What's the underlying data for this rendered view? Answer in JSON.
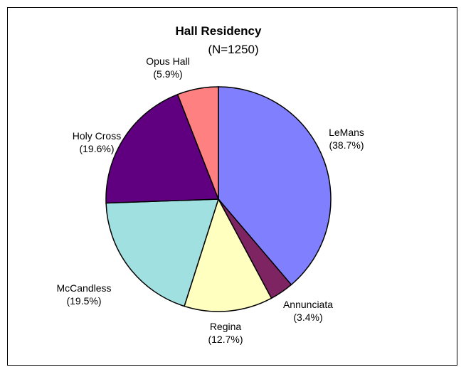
{
  "chart_data": {
    "type": "pie",
    "title": "Hall Residency",
    "subtitle": "(N=1250)",
    "slices": [
      {
        "name": "LeMans",
        "value": 38.7,
        "label_pct": "(38.7%)",
        "color": "#8080ff"
      },
      {
        "name": "Annunciata",
        "value": 3.4,
        "label_pct": "(3.4%)",
        "color": "#7f2463"
      },
      {
        "name": "Regina",
        "value": 12.7,
        "label_pct": "(12.7%)",
        "color": "#ffffc0"
      },
      {
        "name": "McCandless",
        "value": 19.5,
        "label_pct": "(19.5%)",
        "color": "#a0e0e0"
      },
      {
        "name": "Holy Cross",
        "value": 19.6,
        "label_pct": "(19.6%)",
        "color": "#600080"
      },
      {
        "name": "Opus Hall",
        "value": 5.9,
        "label_pct": "(5.9%)",
        "color": "#ff8080"
      }
    ],
    "legend": "none",
    "start_angle": "12 o'clock",
    "direction": "clockwise"
  }
}
